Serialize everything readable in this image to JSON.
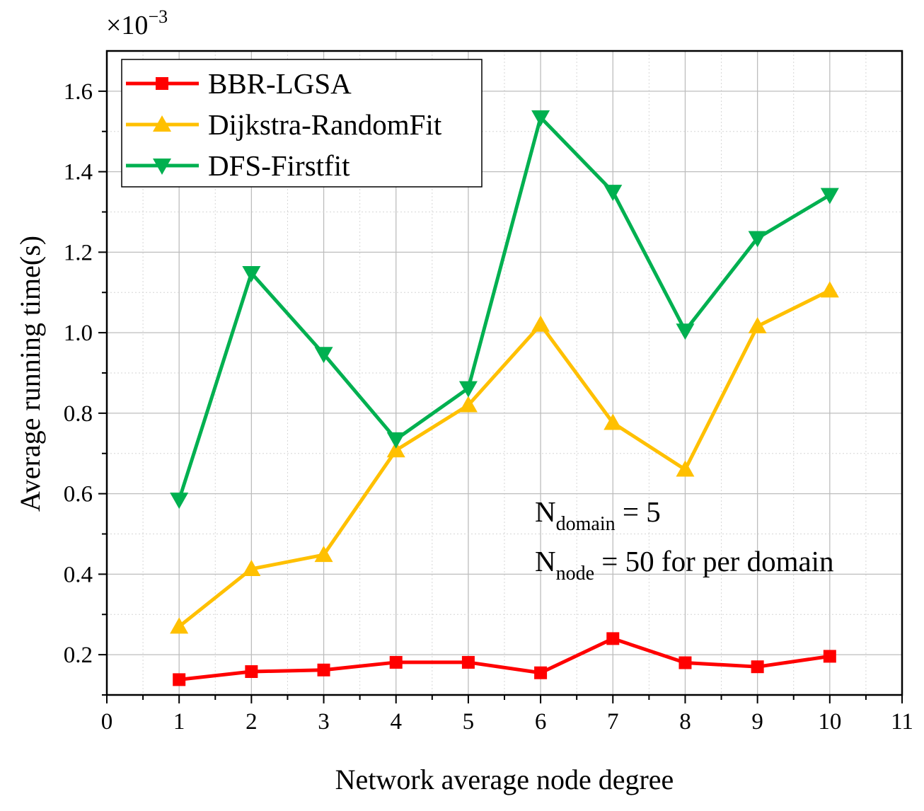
{
  "chart_data": {
    "type": "line",
    "title": "",
    "xlabel": "Network average node degree",
    "ylabel": "Average running time(s)",
    "y_multiplier": "×10",
    "y_multiplier_exp": "−3",
    "xlim": [
      0,
      11
    ],
    "ylim": [
      0.1,
      1.7
    ],
    "xticks": [
      0,
      1,
      2,
      3,
      4,
      5,
      6,
      7,
      8,
      9,
      10,
      11
    ],
    "yticks": [
      0.2,
      0.4,
      0.6,
      0.8,
      1.0,
      1.2,
      1.4,
      1.6
    ],
    "ytick_labels": [
      "0.2",
      "0.4",
      "0.6",
      "0.8",
      "1.0",
      "1.2",
      "1.4",
      "1.6"
    ],
    "grid": true,
    "legend_position": "top-left",
    "x": [
      1,
      2,
      3,
      4,
      5,
      6,
      7,
      8,
      9,
      10
    ],
    "series": [
      {
        "name": "BBR-LGSA",
        "color": "#ff0000",
        "marker": "square",
        "values": [
          0.138,
          0.158,
          0.162,
          0.181,
          0.181,
          0.155,
          0.24,
          0.18,
          0.17,
          0.196
        ]
      },
      {
        "name": "Dijkstra-RandomFit",
        "color": "#ffc000",
        "marker": "triangle-up",
        "values": [
          0.27,
          0.413,
          0.448,
          0.708,
          0.82,
          1.02,
          0.776,
          0.66,
          1.016,
          1.105
        ]
      },
      {
        "name": "DFS-Firstfit",
        "color": "#00b050",
        "marker": "triangle-down",
        "values": [
          0.585,
          1.148,
          0.947,
          0.735,
          0.862,
          1.535,
          1.35,
          1.005,
          1.235,
          1.342
        ]
      }
    ],
    "annotations": {
      "line1": {
        "main": "N",
        "sub": "domain",
        "rest": " = 5"
      },
      "line2": {
        "main": "N",
        "sub": "node",
        "rest": " = 50 for per domain"
      }
    }
  }
}
